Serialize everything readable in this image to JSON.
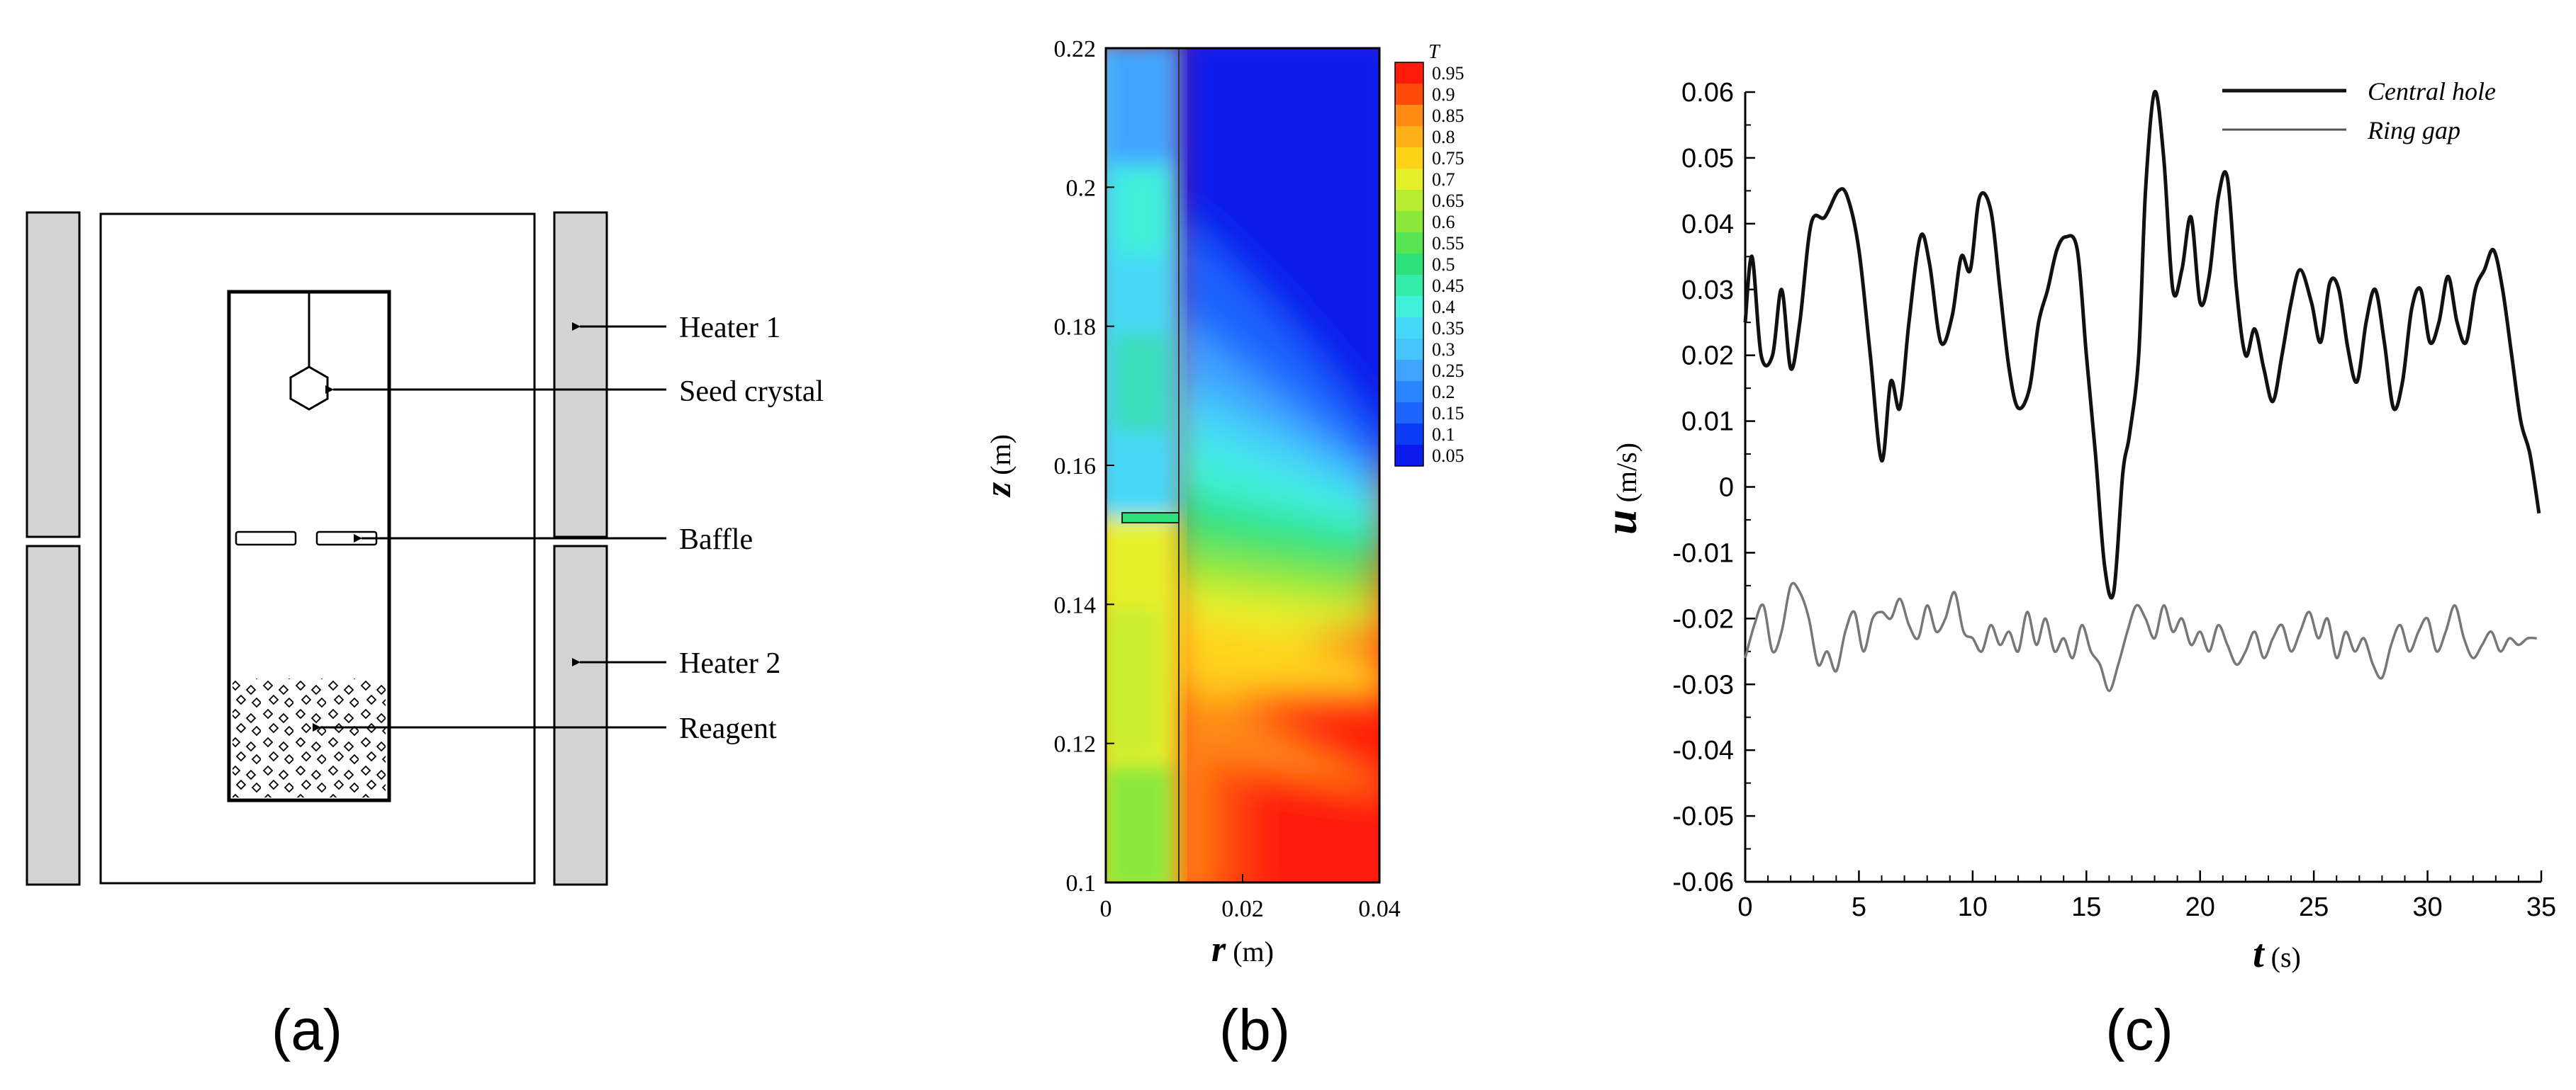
{
  "panel_a": {
    "caption": "(a)",
    "labels": {
      "heater1": "Heater 1",
      "seed": "Seed crystal",
      "baffle": "Baffle",
      "heater2": "Heater 2",
      "reagent": "Reagent"
    }
  },
  "panel_b": {
    "caption": "(b)",
    "legend_title": "T",
    "legend_levels": [
      0.05,
      0.1,
      0.15,
      0.2,
      0.25,
      0.3,
      0.35,
      0.4,
      0.45,
      0.5,
      0.55,
      0.6,
      0.65,
      0.7,
      0.75,
      0.8,
      0.85,
      0.9,
      0.95
    ],
    "legend_labels": [
      "0.95",
      "0.9",
      "0.85",
      "0.8",
      "0.75",
      "0.7",
      "0.65",
      "0.6",
      "0.55",
      "0.5",
      "0.45",
      "0.4",
      "0.35",
      "0.3",
      "0.25",
      "0.2",
      "0.15",
      "0.1",
      "0.05"
    ],
    "y_ticks": [
      "0.22",
      "0.2",
      "0.18",
      "0.16",
      "0.14",
      "0.12",
      "0.1"
    ],
    "x_ticks": [
      "0",
      "0.02",
      "0.04"
    ],
    "y_label_var": "z",
    "y_label_unit": " (m)",
    "x_label_var": "r",
    "x_label_unit": " (m)",
    "xlim": [
      0,
      0.04
    ],
    "ylim": [
      0.1,
      0.22
    ],
    "colors": {
      "deep_blue": "#0a1aee",
      "blue": "#1e64ff",
      "sky": "#3fa4ff",
      "cyan": "#46d8f8",
      "aqua": "#40f0d8",
      "green": "#2ee07a",
      "lime": "#8ae83a",
      "yellow": "#e6f02a",
      "gold": "#ffd21a",
      "orange": "#ff8a14",
      "red_orange": "#ff4a0a",
      "red": "#ff1a0a"
    }
  },
  "chart_data": {
    "type": "line",
    "title": "",
    "caption": "(c)",
    "xlabel_var": "t",
    "xlabel_unit": " (s)",
    "ylabel_var": "u",
    "ylabel_unit": " (m/s)",
    "xlim": [
      0,
      35
    ],
    "ylim": [
      -0.06,
      0.06
    ],
    "x_ticks": [
      0,
      5,
      10,
      15,
      20,
      25,
      30,
      35
    ],
    "x_tick_labels": [
      "0",
      "5",
      "10",
      "15",
      "20",
      "25",
      "30",
      "35"
    ],
    "y_ticks": [
      0.06,
      0.05,
      0.04,
      0.03,
      0.02,
      0.01,
      0,
      -0.01,
      -0.02,
      -0.03,
      -0.04,
      -0.05,
      -0.06
    ],
    "y_tick_labels": [
      "0.06",
      "0.05",
      "0.04",
      "0.03",
      "0.02",
      "0.01",
      "0",
      "-0.01",
      "-0.02",
      "-0.03",
      "-0.04",
      "-0.05",
      "-0.06"
    ],
    "legend_position": "top-right",
    "series": [
      {
        "name": "Central hole",
        "color": "#111111",
        "x": [
          0,
          0.3,
          0.7,
          1.2,
          1.6,
          2.0,
          2.4,
          2.9,
          3.5,
          4.1,
          4.5,
          5.0,
          5.5,
          6.0,
          6.4,
          6.8,
          7.2,
          7.7,
          8.1,
          8.6,
          9.1,
          9.5,
          9.9,
          10.3,
          10.8,
          11.2,
          11.6,
          12.0,
          12.5,
          12.9,
          13.3,
          13.7,
          14.1,
          14.6,
          15.0,
          15.4,
          15.8,
          16.2,
          16.6,
          16.9,
          17.3,
          17.6,
          18.0,
          18.4,
          18.8,
          19.2,
          19.6,
          20.0,
          20.4,
          20.8,
          21.2,
          21.6,
          22.0,
          22.4,
          22.8,
          23.2,
          23.6,
          24.0,
          24.4,
          24.9,
          25.3,
          25.7,
          26.1,
          26.5,
          26.9,
          27.3,
          27.7,
          28.1,
          28.5,
          28.9,
          29.3,
          29.7,
          30.1,
          30.5,
          30.9,
          31.3,
          31.7,
          32.1,
          32.5,
          32.9,
          33.3,
          33.7,
          34.1,
          34.5,
          34.9
        ],
        "values": [
          0.025,
          0.035,
          0.02,
          0.02,
          0.03,
          0.018,
          0.025,
          0.04,
          0.041,
          0.045,
          0.044,
          0.036,
          0.02,
          0.004,
          0.016,
          0.012,
          0.025,
          0.038,
          0.034,
          0.022,
          0.026,
          0.035,
          0.033,
          0.044,
          0.042,
          0.03,
          0.018,
          0.012,
          0.015,
          0.025,
          0.03,
          0.036,
          0.038,
          0.036,
          0.02,
          0.005,
          -0.012,
          -0.016,
          0.002,
          0.008,
          0.02,
          0.045,
          0.06,
          0.05,
          0.03,
          0.033,
          0.041,
          0.028,
          0.032,
          0.044,
          0.047,
          0.03,
          0.02,
          0.024,
          0.018,
          0.013,
          0.02,
          0.028,
          0.033,
          0.028,
          0.022,
          0.031,
          0.03,
          0.021,
          0.016,
          0.025,
          0.03,
          0.022,
          0.012,
          0.016,
          0.027,
          0.03,
          0.022,
          0.025,
          0.032,
          0.025,
          0.022,
          0.03,
          0.033,
          0.036,
          0.03,
          0.02,
          0.01,
          0.005,
          -0.004
        ]
      },
      {
        "name": "Ring gap",
        "color": "#777777",
        "x": [
          0,
          0.4,
          0.8,
          1.2,
          1.6,
          2.0,
          2.4,
          2.8,
          3.2,
          3.6,
          4.0,
          4.4,
          4.8,
          5.2,
          5.6,
          6.0,
          6.4,
          6.8,
          7.2,
          7.6,
          8.0,
          8.4,
          8.8,
          9.2,
          9.6,
          10.0,
          10.4,
          10.8,
          11.2,
          11.6,
          12.0,
          12.4,
          12.8,
          13.2,
          13.6,
          14.0,
          14.4,
          14.8,
          15.2,
          15.6,
          16.0,
          16.4,
          16.8,
          17.2,
          17.6,
          18.0,
          18.4,
          18.8,
          19.2,
          19.6,
          20.0,
          20.4,
          20.8,
          21.2,
          21.6,
          22.0,
          22.4,
          22.8,
          23.2,
          23.6,
          24.0,
          24.4,
          24.8,
          25.2,
          25.6,
          26.0,
          26.4,
          26.8,
          27.2,
          27.6,
          28.0,
          28.4,
          28.8,
          29.2,
          29.6,
          30.0,
          30.4,
          30.8,
          31.2,
          31.6,
          32.0,
          32.4,
          32.8,
          33.2,
          33.6,
          34.0,
          34.4,
          34.8
        ],
        "values": [
          -0.026,
          -0.021,
          -0.018,
          -0.025,
          -0.022,
          -0.015,
          -0.016,
          -0.02,
          -0.027,
          -0.025,
          -0.028,
          -0.022,
          -0.019,
          -0.025,
          -0.02,
          -0.019,
          -0.02,
          -0.017,
          -0.021,
          -0.023,
          -0.018,
          -0.022,
          -0.02,
          -0.016,
          -0.022,
          -0.023,
          -0.025,
          -0.021,
          -0.024,
          -0.022,
          -0.025,
          -0.019,
          -0.024,
          -0.02,
          -0.025,
          -0.023,
          -0.026,
          -0.021,
          -0.025,
          -0.027,
          -0.031,
          -0.027,
          -0.022,
          -0.018,
          -0.02,
          -0.023,
          -0.018,
          -0.022,
          -0.02,
          -0.024,
          -0.022,
          -0.025,
          -0.021,
          -0.024,
          -0.027,
          -0.025,
          -0.022,
          -0.026,
          -0.023,
          -0.021,
          -0.025,
          -0.022,
          -0.019,
          -0.023,
          -0.02,
          -0.026,
          -0.022,
          -0.025,
          -0.023,
          -0.027,
          -0.029,
          -0.024,
          -0.021,
          -0.025,
          -0.022,
          -0.02,
          -0.025,
          -0.022,
          -0.018,
          -0.023,
          -0.026,
          -0.024,
          -0.022,
          -0.025,
          -0.023,
          -0.024,
          -0.023,
          -0.023
        ]
      }
    ]
  }
}
